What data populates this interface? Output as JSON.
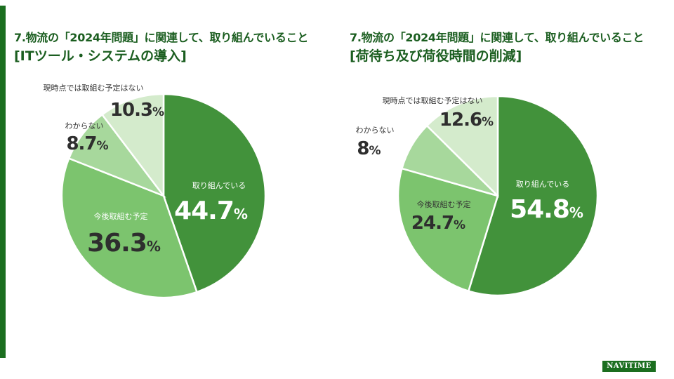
{
  "brand": "NAVITIME",
  "colors": {
    "accent": "#1b6e1f",
    "title": "#1b5e20",
    "slice_doing": "#42923b",
    "slice_planned": "#7cc46e",
    "slice_unknown": "#a7d89c",
    "slice_none": "#d4ebcc"
  },
  "chart_data": [
    {
      "type": "pie",
      "title": "7.物流の「2024年問題」に関連して、取り組んでいること",
      "subtitle": "[ITツール・システムの導入]",
      "unit": "%",
      "categories": [
        "取り組んでいる",
        "今後取組む予定",
        "わからない",
        "現時点では取組む予定はない"
      ],
      "values": [
        44.7,
        36.3,
        8.7,
        10.3
      ],
      "value_labels": [
        "44.7",
        "36.3",
        "8.7",
        "10.3"
      ]
    },
    {
      "type": "pie",
      "title": "7.物流の「2024年問題」に関連して、取り組んでいること",
      "subtitle": "[荷待ち及び荷役時間の削減]",
      "unit": "%",
      "categories": [
        "取り組んでいる",
        "今後取組む予定",
        "わからない",
        "現時点では取組む予定はない"
      ],
      "values": [
        54.8,
        24.7,
        8,
        12.6
      ],
      "value_labels": [
        "54.8",
        "24.7",
        "8",
        "12.6"
      ]
    }
  ]
}
